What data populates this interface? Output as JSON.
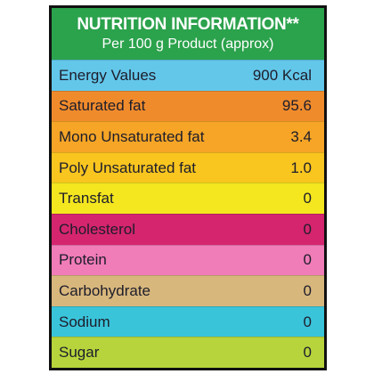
{
  "header": {
    "title": "NUTRITION INFORMATION**",
    "subtitle": "Per 100 g Product (approx)"
  },
  "table": {
    "rows": [
      [
        "Energy Values",
        "900 Kcal"
      ],
      [
        "Saturated fat",
        "95.6"
      ],
      [
        "Mono Unsaturated fat",
        "3.4"
      ],
      [
        "Poly Unsaturated fat",
        "1.0"
      ],
      [
        "Transfat",
        "0"
      ],
      [
        "Cholesterol",
        "0"
      ],
      [
        "Protein",
        "0"
      ],
      [
        "Carbohydrate",
        "0"
      ],
      [
        "Sodium",
        "0"
      ],
      [
        "Sugar",
        "0"
      ]
    ]
  }
}
